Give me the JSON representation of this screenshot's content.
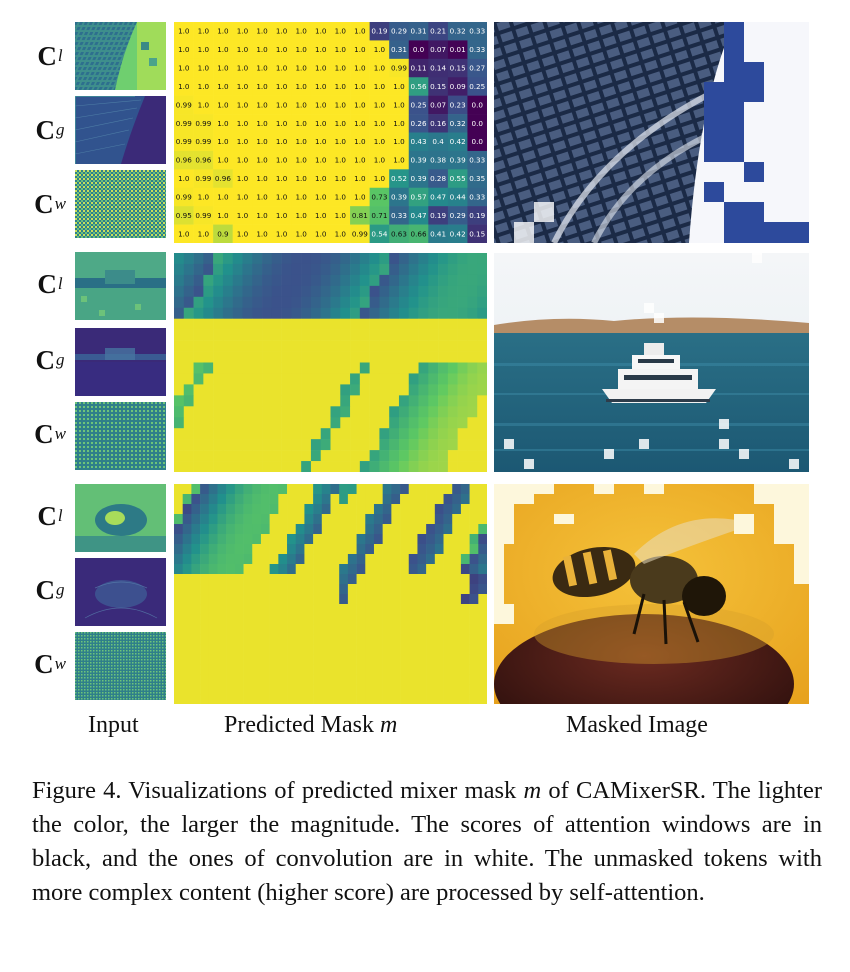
{
  "figure": {
    "labels": {
      "c_letter": "C",
      "sub_l": "l",
      "sub_g": "g",
      "sub_w": "w"
    },
    "column_labels": {
      "input": "Input",
      "mask_prefix": "Predicted Mask ",
      "mask_var": "m",
      "masked": "Masked Image"
    },
    "mask1_rows": [
      [
        1.0,
        1.0,
        1.0,
        1.0,
        1.0,
        1.0,
        1.0,
        1.0,
        1.0,
        1.0,
        0.19,
        0.29,
        0.31,
        0.21,
        0.32,
        0.33
      ],
      [
        1.0,
        1.0,
        1.0,
        1.0,
        1.0,
        1.0,
        1.0,
        1.0,
        1.0,
        1.0,
        1.0,
        0.31,
        0.0,
        0.07,
        0.01,
        0.33
      ],
      [
        1.0,
        1.0,
        1.0,
        1.0,
        1.0,
        1.0,
        1.0,
        1.0,
        1.0,
        1.0,
        1.0,
        0.99,
        0.11,
        0.14,
        0.15,
        0.27
      ],
      [
        1.0,
        1.0,
        1.0,
        1.0,
        1.0,
        1.0,
        1.0,
        1.0,
        1.0,
        1.0,
        1.0,
        1.0,
        0.56,
        0.15,
        0.09,
        0.25
      ],
      [
        0.99,
        1.0,
        1.0,
        1.0,
        1.0,
        1.0,
        1.0,
        1.0,
        1.0,
        1.0,
        1.0,
        1.0,
        0.25,
        0.07,
        0.23,
        0.0
      ],
      [
        0.99,
        0.99,
        1.0,
        1.0,
        1.0,
        1.0,
        1.0,
        1.0,
        1.0,
        1.0,
        1.0,
        1.0,
        0.26,
        0.16,
        0.32,
        0.0
      ],
      [
        0.99,
        0.99,
        1.0,
        1.0,
        1.0,
        1.0,
        1.0,
        1.0,
        1.0,
        1.0,
        1.0,
        1.0,
        0.43,
        0.4,
        0.42,
        0.0
      ],
      [
        0.96,
        0.96,
        1.0,
        1.0,
        1.0,
        1.0,
        1.0,
        1.0,
        1.0,
        1.0,
        1.0,
        1.0,
        0.39,
        0.38,
        0.39,
        0.33
      ],
      [
        1.0,
        0.99,
        0.96,
        1.0,
        1.0,
        1.0,
        1.0,
        1.0,
        1.0,
        1.0,
        1.0,
        0.52,
        0.39,
        0.28,
        0.55,
        0.35
      ],
      [
        0.99,
        1.0,
        1.0,
        1.0,
        1.0,
        1.0,
        1.0,
        1.0,
        1.0,
        1.0,
        0.73,
        0.39,
        0.57,
        0.47,
        0.44,
        0.33
      ],
      [
        0.95,
        0.99,
        1.0,
        1.0,
        1.0,
        1.0,
        1.0,
        1.0,
        1.0,
        0.81,
        0.71,
        0.33,
        0.47,
        0.19,
        0.29,
        0.19
      ],
      [
        1.0,
        1.0,
        0.9,
        1.0,
        1.0,
        1.0,
        1.0,
        1.0,
        1.0,
        0.99,
        0.54,
        0.63,
        0.66,
        0.41,
        0.42,
        0.15
      ]
    ],
    "caption": {
      "part1": "Figure 4.  Visualizations of predicted mixer mask ",
      "var": "m",
      "part2": " of CAMixerSR. The lighter the color, the larger the magnitude. The scores of attention windows are in black, and the ones of convolution are in white. The unmasked tokens with more complex content (higher score) are processed by self-attention."
    }
  }
}
